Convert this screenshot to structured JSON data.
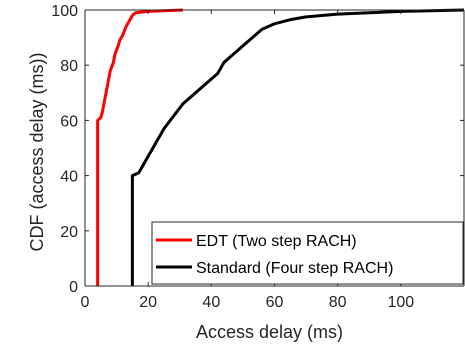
{
  "chart_data": {
    "type": "line",
    "xlabel": "Access delay (ms)",
    "ylabel": "CDF (access delay (ms))",
    "xlim": [
      0,
      120
    ],
    "ylim": [
      0,
      100
    ],
    "xticks": [
      0,
      20,
      40,
      60,
      80,
      100
    ],
    "yticks": [
      0,
      20,
      40,
      60,
      80,
      100
    ],
    "grid": false,
    "legend_position": "bottom-right",
    "series": [
      {
        "name": "EDT (Two step RACH)",
        "color": "#ff0000",
        "points": [
          [
            4,
            0
          ],
          [
            4,
            60
          ],
          [
            5,
            61
          ],
          [
            5.5,
            63
          ],
          [
            6,
            66
          ],
          [
            6.5,
            69
          ],
          [
            7,
            72
          ],
          [
            7.5,
            75
          ],
          [
            8,
            78
          ],
          [
            9,
            81
          ],
          [
            9.5,
            84
          ],
          [
            10.5,
            87
          ],
          [
            11,
            89
          ],
          [
            12,
            91
          ],
          [
            13,
            94
          ],
          [
            14,
            96
          ],
          [
            15,
            98
          ],
          [
            16,
            99
          ],
          [
            20,
            99.5
          ],
          [
            31,
            100
          ]
        ]
      },
      {
        "name": "Standard (Four step RACH)",
        "color": "#000000",
        "points": [
          [
            15,
            0
          ],
          [
            15,
            40
          ],
          [
            17,
            41
          ],
          [
            18,
            43
          ],
          [
            19,
            45
          ],
          [
            20,
            47
          ],
          [
            21,
            49
          ],
          [
            22,
            51
          ],
          [
            23,
            53
          ],
          [
            24,
            55
          ],
          [
            25,
            57
          ],
          [
            27,
            60
          ],
          [
            29,
            63
          ],
          [
            31,
            66
          ],
          [
            34,
            69
          ],
          [
            37,
            72
          ],
          [
            40,
            75
          ],
          [
            42,
            77
          ],
          [
            43,
            79
          ],
          [
            44,
            81
          ],
          [
            46,
            83
          ],
          [
            48,
            85
          ],
          [
            50,
            87
          ],
          [
            52,
            89
          ],
          [
            54,
            91
          ],
          [
            56,
            93
          ],
          [
            60,
            95
          ],
          [
            65,
            96.5
          ],
          [
            70,
            97.5
          ],
          [
            80,
            98.5
          ],
          [
            90,
            99
          ],
          [
            100,
            99.5
          ],
          [
            120,
            100
          ]
        ]
      }
    ]
  }
}
